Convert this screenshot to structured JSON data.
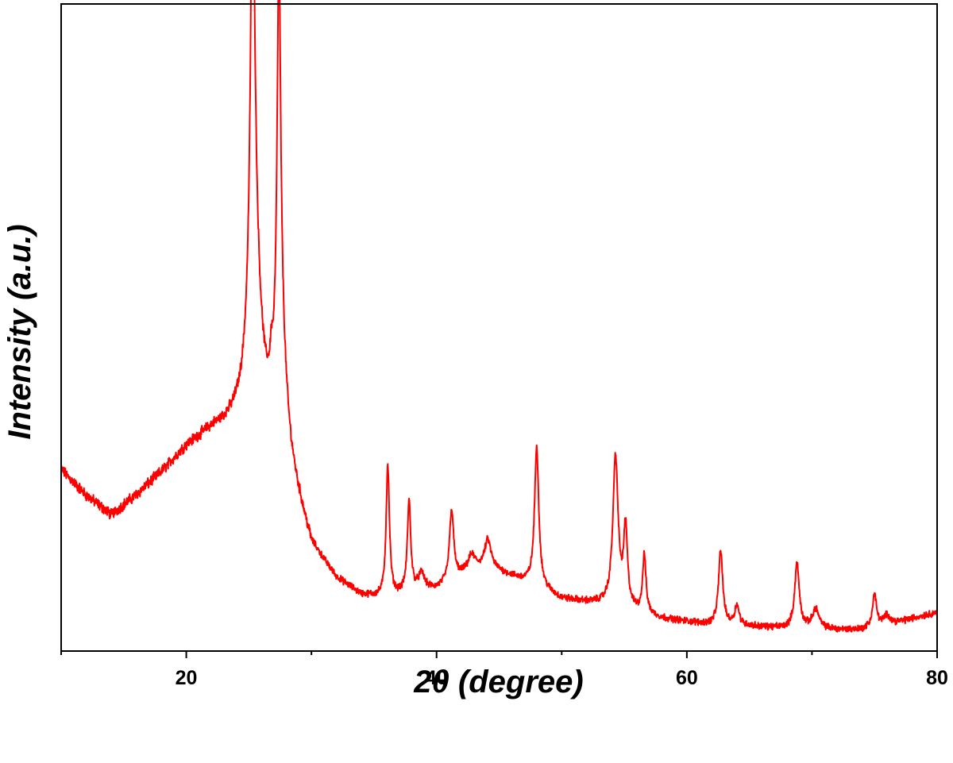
{
  "chart_data": {
    "type": "line",
    "xlabel": "2θ (degree)",
    "ylabel": "Intensity (a.u.)",
    "xlim": [
      10,
      80
    ],
    "ylim": [
      0,
      100
    ],
    "x_ticks": [
      20,
      40,
      60,
      80
    ],
    "y_ticks_shown": false,
    "grid": false,
    "legend": "none",
    "series": [
      {
        "color": "#ff0000",
        "baseline": [
          [
            10,
            28.0
          ],
          [
            12,
            24.0
          ],
          [
            14,
            21.0
          ],
          [
            16,
            24.0
          ],
          [
            18,
            27.5
          ],
          [
            20,
            31.5
          ],
          [
            22,
            34.0
          ],
          [
            24,
            35.0
          ],
          [
            26,
            34.0
          ],
          [
            28,
            29.0
          ],
          [
            30,
            16.0
          ],
          [
            32,
            11.0
          ],
          [
            34,
            8.5
          ],
          [
            36,
            8.0
          ],
          [
            38,
            9.0
          ],
          [
            40,
            9.5
          ],
          [
            42,
            11.5
          ],
          [
            44,
            13.0
          ],
          [
            46,
            11.5
          ],
          [
            48,
            10.0
          ],
          [
            50,
            8.0
          ],
          [
            52,
            7.5
          ],
          [
            54,
            7.0
          ],
          [
            56,
            6.0
          ],
          [
            58,
            5.0
          ],
          [
            60,
            4.5
          ],
          [
            62,
            4.0
          ],
          [
            64,
            4.0
          ],
          [
            66,
            3.7
          ],
          [
            68,
            3.5
          ],
          [
            70,
            3.5
          ],
          [
            72,
            3.3
          ],
          [
            74,
            3.3
          ],
          [
            76,
            4.0
          ],
          [
            78,
            5.0
          ],
          [
            80,
            6.0
          ]
        ],
        "peaks": [
          {
            "x": 25.3,
            "height": 63.0,
            "width": 0.18
          },
          {
            "x": 25.4,
            "height": 30.0,
            "width": 0.55
          },
          {
            "x": 26.8,
            "height": 4.0,
            "width": 0.12
          },
          {
            "x": 27.4,
            "height": 56.0,
            "width": 0.16
          },
          {
            "x": 27.5,
            "height": 20.0,
            "width": 0.45
          },
          {
            "x": 36.1,
            "height": 20.5,
            "width": 0.16
          },
          {
            "x": 37.8,
            "height": 14.0,
            "width": 0.16
          },
          {
            "x": 38.8,
            "height": 2.5,
            "width": 0.3
          },
          {
            "x": 41.2,
            "height": 11.0,
            "width": 0.2
          },
          {
            "x": 42.8,
            "height": 2.5,
            "width": 0.35
          },
          {
            "x": 44.1,
            "height": 4.0,
            "width": 0.3
          },
          {
            "x": 48.0,
            "height": 21.5,
            "width": 0.2
          },
          {
            "x": 54.3,
            "height": 23.0,
            "width": 0.25
          },
          {
            "x": 55.1,
            "height": 12.0,
            "width": 0.18
          },
          {
            "x": 56.6,
            "height": 9.0,
            "width": 0.16
          },
          {
            "x": 62.7,
            "height": 11.5,
            "width": 0.2
          },
          {
            "x": 64.0,
            "height": 3.0,
            "width": 0.2
          },
          {
            "x": 68.8,
            "height": 10.0,
            "width": 0.22
          },
          {
            "x": 70.3,
            "height": 3.0,
            "width": 0.3
          },
          {
            "x": 75.0,
            "height": 5.0,
            "width": 0.2
          },
          {
            "x": 76.0,
            "height": 1.5,
            "width": 0.3
          }
        ]
      }
    ]
  }
}
